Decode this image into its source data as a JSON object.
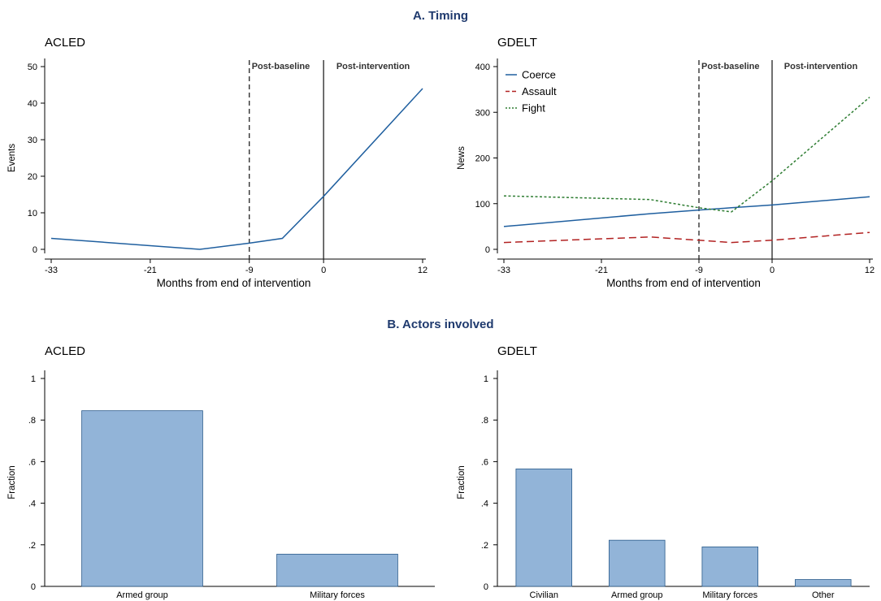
{
  "sections": {
    "timing": "A. Timing",
    "actors": "B. Actors involved"
  },
  "chart_data": [
    {
      "type": "line",
      "panel": "A",
      "title": "ACLED",
      "xlabel": "Months from end of intervention",
      "ylabel": "Events",
      "x": [
        -33,
        -15,
        -9,
        -5,
        0,
        12
      ],
      "series": [
        {
          "values": [
            3,
            0,
            1.7,
            3,
            14.5,
            44
          ],
          "color": "#1f5f9f",
          "dash": "solid"
        }
      ],
      "xticks": [
        -33,
        -21,
        -9,
        0,
        12
      ],
      "yticks": [
        0,
        10,
        20,
        30,
        40,
        50
      ],
      "xlim": [
        -33,
        12
      ],
      "ylim": [
        0,
        50
      ],
      "vlines": [
        {
          "x": -9,
          "style": "dashed",
          "label": "Post-baseline"
        },
        {
          "x": 0,
          "style": "solid",
          "label": "Post-intervention"
        }
      ],
      "grid": false
    },
    {
      "type": "line",
      "panel": "A",
      "title": "GDELT",
      "xlabel": "Months from end of intervention",
      "ylabel": "News",
      "x": [
        -33,
        -15,
        -9,
        -5,
        0,
        12
      ],
      "series": [
        {
          "name": "Coerce",
          "values": [
            50,
            78,
            86,
            91,
            97,
            115
          ],
          "color": "#1f5f9f",
          "dash": "solid"
        },
        {
          "name": "Assault",
          "values": [
            15,
            27,
            20,
            15,
            20,
            37
          ],
          "color": "#b22222",
          "dash": "longdash"
        },
        {
          "name": "Fight",
          "values": [
            117,
            109,
            91,
            82,
            150,
            333
          ],
          "color": "#2e7d32",
          "dash": "dot"
        }
      ],
      "xticks": [
        -33,
        -21,
        -9,
        0,
        12
      ],
      "yticks": [
        0,
        100,
        200,
        300,
        400
      ],
      "xlim": [
        -33,
        12
      ],
      "ylim": [
        0,
        400
      ],
      "vlines": [
        {
          "x": -9,
          "style": "dashed",
          "label": "Post-baseline"
        },
        {
          "x": 0,
          "style": "solid",
          "label": "Post-intervention"
        }
      ],
      "legend": "top-left",
      "grid": false
    },
    {
      "type": "bar",
      "panel": "B",
      "title": "ACLED",
      "ylabel": "Fraction",
      "categories": [
        "Armed group",
        "Military forces"
      ],
      "values": [
        0.845,
        0.155
      ],
      "yticks": [
        "0",
        ".2",
        ".4",
        ".6",
        ".8",
        "1"
      ],
      "ylim": [
        0,
        1
      ],
      "color": "#92b4d8",
      "grid": false
    },
    {
      "type": "bar",
      "panel": "B",
      "title": "GDELT",
      "ylabel": "Fraction",
      "categories": [
        "Civilian",
        "Armed group",
        "Military forces",
        "Other"
      ],
      "values": [
        0.565,
        0.222,
        0.19,
        0.033
      ],
      "yticks": [
        "0",
        ".2",
        ".4",
        ".6",
        ".8",
        "1"
      ],
      "ylim": [
        0,
        1
      ],
      "color": "#92b4d8",
      "grid": false
    }
  ]
}
